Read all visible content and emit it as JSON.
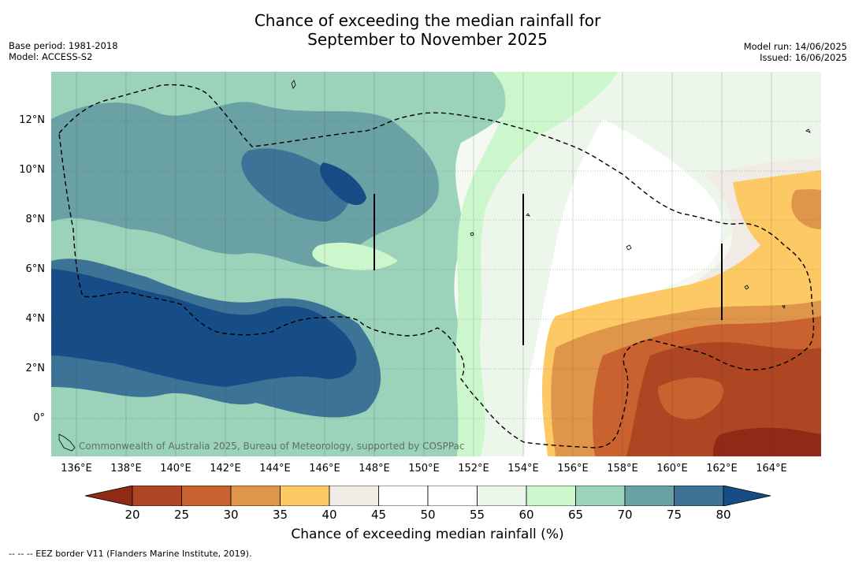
{
  "title_line1": "Chance of exceeding the median rainfall for",
  "title_line2": "September to November 2025",
  "base_period": "Base period: 1981-2018",
  "model": "Model: ACCESS-S2",
  "model_run": "Model run: 14/06/2025",
  "issued": "Issued: 16/06/2025",
  "copyright": "Commonwealth of Australia 2025, Bureau of Meteorology, supported by COSPPac",
  "lat_labels": [
    "12°N",
    "10°N",
    "8°N",
    "6°N",
    "4°N",
    "2°N",
    "0°"
  ],
  "lon_labels": [
    "136°E",
    "138°E",
    "140°E",
    "142°E",
    "144°E",
    "146°E",
    "148°E",
    "150°E",
    "152°E",
    "154°E",
    "156°E",
    "158°E",
    "160°E",
    "162°E",
    "164°E"
  ],
  "colorbar": {
    "ticks": [
      "20",
      "25",
      "30",
      "35",
      "40",
      "45",
      "50",
      "55",
      "60",
      "65",
      "70",
      "75",
      "80"
    ],
    "colors": [
      "#8f2a16",
      "#ae4523",
      "#c9622f",
      "#e0964a",
      "#fdc965",
      "#f1ebe6",
      "#ffffff",
      "#ffffff",
      "#ecf6ea",
      "#ccf7cc",
      "#9ad2ba",
      "#6aa1a4",
      "#3d7397",
      "#174d86"
    ],
    "title": "Chance of exceeding median rainfall (%)"
  },
  "footer": "--  --  -- EEZ border V11 (Flanders Marine Institute, 2019)."
}
